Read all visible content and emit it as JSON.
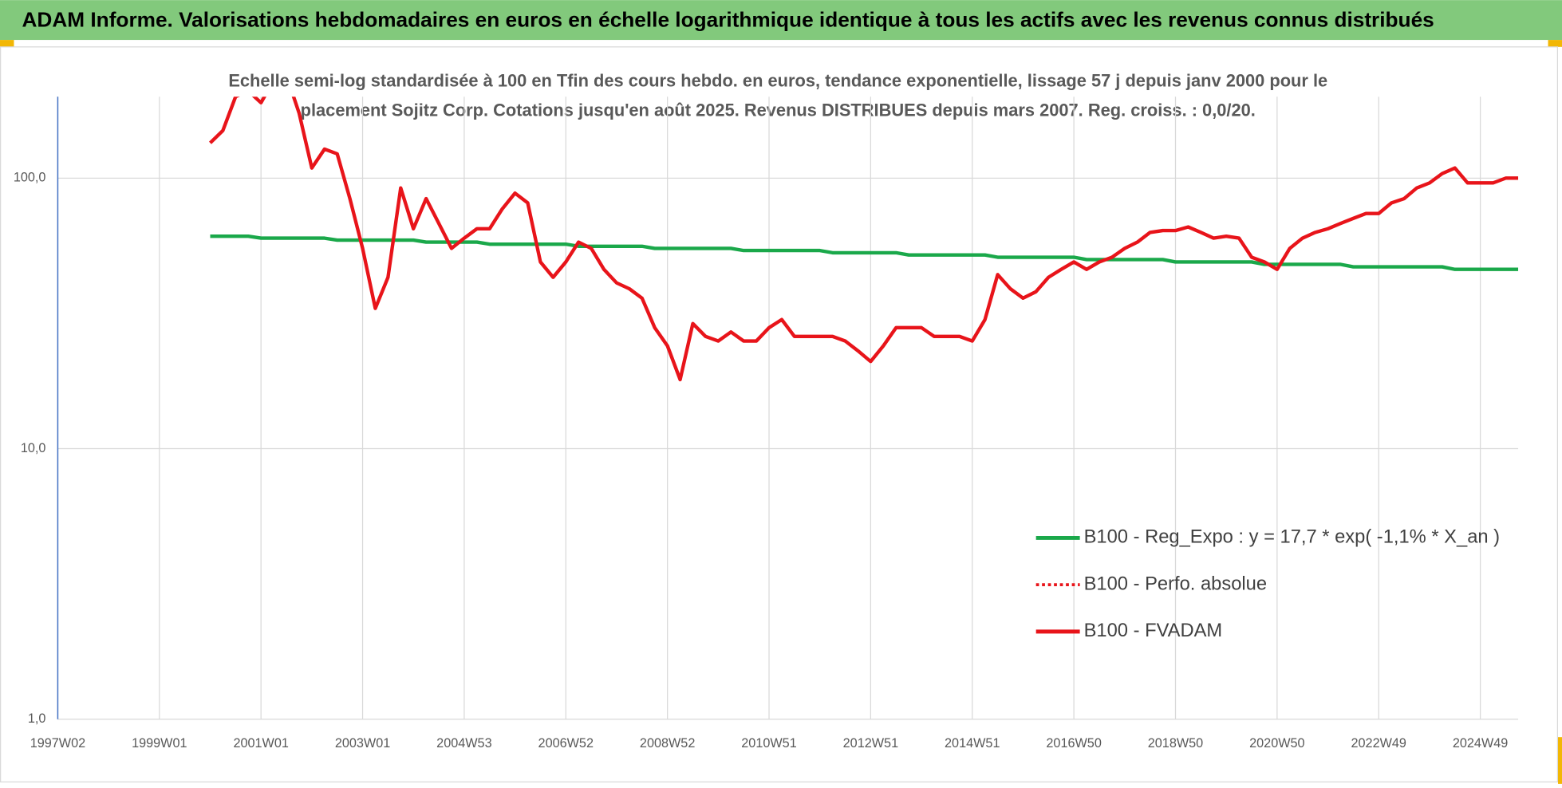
{
  "chart_data": {
    "type": "line",
    "title": "ADAM Informe. Valorisations hebdomadaires en euros en échelle logarithmique identique à tous les actifs avec les revenus connus distribués",
    "subtitle": [
      "Echelle semi-log standardisée à 100 en Tfin des cours hebdo. en euros, tendance exponentielle, lissage 57 j depuis janv 2000 pour le",
      "placement Sojitz Corp. Cotations jusqu'en août 2025. Revenus DISTRIBUES depuis mars 2007. Reg. croiss. : 0,0/20."
    ],
    "log_scale": true,
    "grid": true,
    "legend": "right",
    "ylim": [
      1,
      200
    ],
    "yticks": [
      {
        "value": 1,
        "label": "1,0"
      },
      {
        "value": 10,
        "label": "10,0"
      },
      {
        "value": 100,
        "label": "100,0"
      }
    ],
    "categories": [
      "1997W02",
      null,
      null,
      null,
      null,
      null,
      null,
      null,
      "1999W01",
      null,
      null,
      null,
      null,
      null,
      null,
      null,
      "2001W01",
      null,
      null,
      null,
      null,
      null,
      null,
      null,
      "2003W01",
      null,
      null,
      null,
      null,
      null,
      null,
      null,
      "2004W53",
      null,
      null,
      null,
      null,
      null,
      null,
      null,
      "2006W52",
      null,
      null,
      null,
      null,
      null,
      null,
      null,
      "2008W52",
      null,
      null,
      null,
      null,
      null,
      null,
      null,
      "2010W51",
      null,
      null,
      null,
      null,
      null,
      null,
      null,
      "2012W51",
      null,
      null,
      null,
      null,
      null,
      null,
      null,
      "2014W51",
      null,
      null,
      null,
      null,
      null,
      null,
      null,
      "2016W50",
      null,
      null,
      null,
      null,
      null,
      null,
      null,
      "2018W50",
      null,
      null,
      null,
      null,
      null,
      null,
      null,
      "2020W50",
      null,
      null,
      null,
      null,
      null,
      null,
      null,
      "2022W49",
      null,
      null,
      null,
      null,
      null,
      null,
      null,
      "2024W49",
      null,
      null,
      null
    ],
    "series": [
      {
        "name": "B100 - Reg_Expo : y = 17,7 * exp( -1,1% *  X_an )",
        "color": "#1aa84a",
        "style": "solid",
        "values": [
          null,
          null,
          null,
          null,
          null,
          null,
          null,
          null,
          null,
          null,
          null,
          null,
          61,
          61,
          61,
          61,
          60,
          60,
          60,
          60,
          60,
          60,
          59,
          59,
          59,
          59,
          59,
          59,
          59,
          58,
          58,
          58,
          58,
          58,
          57,
          57,
          57,
          57,
          57,
          57,
          57,
          56,
          56,
          56,
          56,
          56,
          56,
          55,
          55,
          55,
          55,
          55,
          55,
          55,
          54,
          54,
          54,
          54,
          54,
          54,
          54,
          53,
          53,
          53,
          53,
          53,
          53,
          52,
          52,
          52,
          52,
          52,
          52,
          52,
          51,
          51,
          51,
          51,
          51,
          51,
          51,
          50,
          50,
          50,
          50,
          50,
          50,
          50,
          49,
          49,
          49,
          49,
          49,
          49,
          49,
          48,
          48,
          48,
          48,
          48,
          48,
          48,
          47,
          47,
          47,
          47,
          47,
          47,
          47,
          47,
          46,
          46,
          46,
          46,
          46,
          46
        ]
      },
      {
        "name": "B100 - Perfo. absolue",
        "color": "#e8141a",
        "style": "dotted",
        "values": [
          null,
          null,
          null,
          null,
          null,
          null,
          null,
          null,
          null,
          null,
          null,
          null,
          null,
          null,
          null,
          null,
          null,
          null,
          null,
          null,
          null,
          null,
          null,
          null,
          null,
          null,
          null,
          null,
          null,
          null,
          null,
          null,
          null,
          null,
          null,
          null,
          null,
          null,
          null,
          null,
          null,
          null,
          null,
          null,
          null,
          null,
          null,
          null,
          null,
          null,
          null,
          null,
          null,
          null,
          null,
          null,
          null,
          null,
          null,
          null,
          null,
          null,
          null,
          null,
          null,
          null,
          null,
          null,
          null,
          null,
          null,
          null,
          null,
          null,
          null,
          null,
          null,
          null,
          null,
          null,
          null,
          null,
          null,
          null,
          null,
          null,
          null,
          null,
          null,
          null,
          null,
          null,
          null,
          null,
          null,
          null,
          null,
          null,
          null,
          null,
          null,
          null,
          null,
          null,
          null,
          null,
          null,
          null,
          null,
          null,
          null,
          null,
          null,
          null,
          null,
          null
        ]
      },
      {
        "name": "B100 - FVADAM",
        "color": "#e8141a",
        "style": "solid",
        "values": [
          null,
          null,
          null,
          null,
          null,
          null,
          null,
          null,
          null,
          null,
          null,
          null,
          135,
          150,
          200,
          210,
          190,
          230,
          240,
          174,
          109,
          128,
          123,
          84,
          55,
          33,
          43,
          92,
          65,
          84,
          68,
          55,
          60,
          65,
          65,
          77,
          88,
          81,
          49,
          43,
          49,
          58,
          55,
          46,
          41,
          39,
          36,
          28,
          24,
          18,
          29,
          26,
          25,
          27,
          25,
          25,
          28,
          30,
          26,
          26,
          26,
          26,
          25,
          23,
          21,
          24,
          28,
          28,
          28,
          26,
          26,
          26,
          25,
          30,
          44,
          39,
          36,
          38,
          43,
          46,
          49,
          46,
          49,
          51,
          55,
          58,
          63,
          64,
          64,
          66,
          63,
          60,
          61,
          60,
          51,
          49,
          46,
          55,
          60,
          63,
          65,
          68,
          71,
          74,
          74,
          81,
          84,
          92,
          96,
          104,
          109,
          96,
          96,
          96,
          100,
          100
        ]
      }
    ]
  }
}
